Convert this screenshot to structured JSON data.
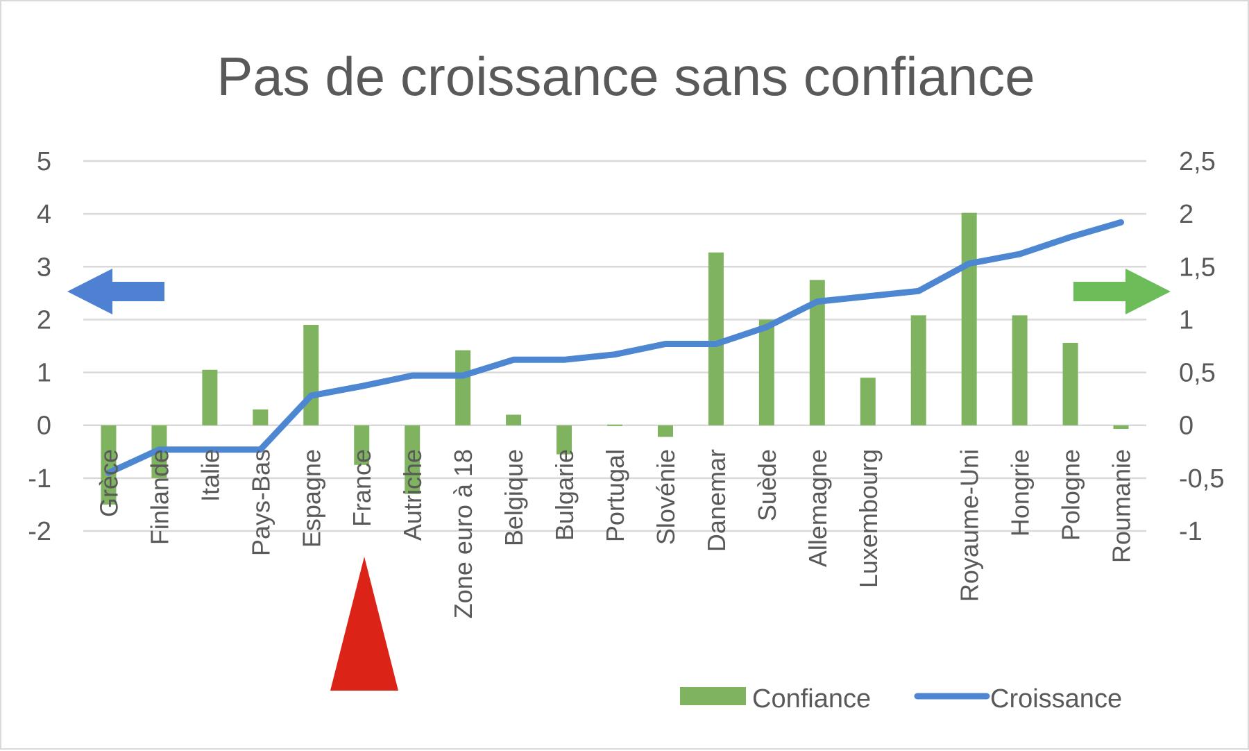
{
  "chart_data": {
    "type": "bar",
    "title": "Pas de croissance sans confiance",
    "categories": [
      "Grèce",
      "Finlande",
      "Italie",
      "Pays-Bas",
      "Espagne",
      "France",
      "Autriche",
      "Zone euro à 18",
      "Belgique",
      "Bulgarie",
      "Portugal",
      "Slovénie",
      "Danemar",
      "Suède",
      "Allemagne",
      "Luxembourg",
      "",
      "Royaume-Uni",
      "Hongrie",
      "Pologne",
      "Roumanie"
    ],
    "series": [
      {
        "name": "Confiance",
        "type": "bar",
        "axis": "left",
        "color": "#7fb360",
        "values": [
          -1.5,
          -1.0,
          1.05,
          0.3,
          1.9,
          -0.75,
          -1.3,
          1.42,
          0.2,
          -0.55,
          0.0,
          -0.22,
          3.27,
          2.0,
          2.75,
          0.9,
          2.08,
          4.02,
          2.08,
          1.56,
          -0.07
        ]
      },
      {
        "name": "Croissance",
        "type": "line",
        "axis": "right",
        "color": "#4d86d1",
        "values": [
          -0.45,
          -0.23,
          -0.23,
          -0.23,
          0.28,
          0.37,
          0.47,
          0.47,
          0.62,
          0.62,
          0.67,
          0.77,
          0.77,
          0.93,
          1.17,
          1.22,
          1.27,
          1.53,
          1.62,
          1.78,
          1.92
        ]
      }
    ],
    "y_left": {
      "ylim": [
        -2,
        5
      ],
      "ticks": [
        "-2",
        "-1",
        "0",
        "1",
        "2",
        "3",
        "4",
        "5"
      ]
    },
    "y_right": {
      "ylim": [
        -1,
        2.5
      ],
      "ticks": [
        "-1",
        "-0,5",
        "0",
        "0,5",
        "1",
        "1,5",
        "2",
        "2,5"
      ]
    },
    "grid": true,
    "legend_position": "bottom-right"
  },
  "annotations": {
    "left_arrow_color": "#4f81d3",
    "right_arrow_color": "#6cbd5a",
    "france_marker_color": "#dc2318"
  }
}
